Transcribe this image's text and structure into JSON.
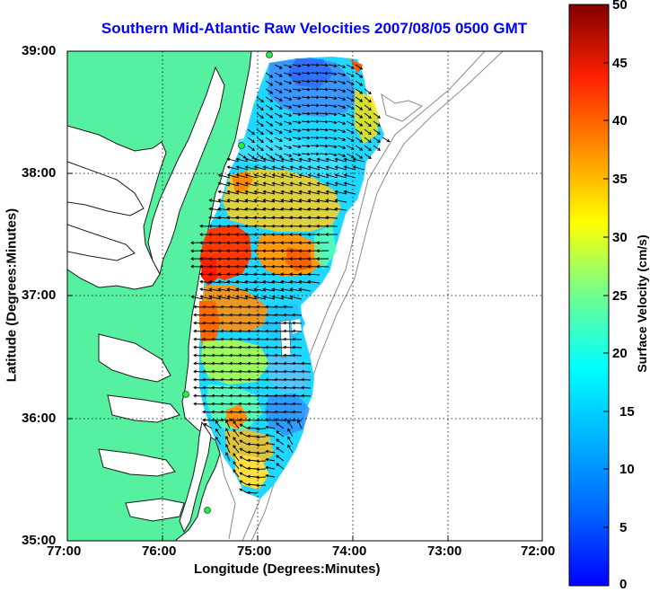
{
  "map": {
    "title": "Southern Mid-Atlantic Raw Velocities 2007/08/05 0500 GMT",
    "xlabel": "Longitude (Degrees:Minutes)",
    "ylabel": "Latitude (Degrees:Minutes)",
    "lon_ticks": [
      "77:00",
      "76:00",
      "75:00",
      "74:00",
      "73:00",
      "72:00"
    ],
    "lat_ticks": [
      "39:00",
      "38:00",
      "37:00",
      "36:00",
      "35:00"
    ],
    "lon_range": [
      -77,
      -72
    ],
    "lat_range": [
      35,
      39
    ]
  },
  "colorbar": {
    "label": "Surface Velocity (cm/s)",
    "ticks": [
      "0",
      "5",
      "10",
      "15",
      "20",
      "25",
      "30",
      "35",
      "40",
      "45",
      "50"
    ],
    "min": 0,
    "max": 50,
    "colormap": "jet"
  },
  "colors": {
    "title": "#0000ff",
    "land": "#55f0a0",
    "grid": "#000000"
  }
}
